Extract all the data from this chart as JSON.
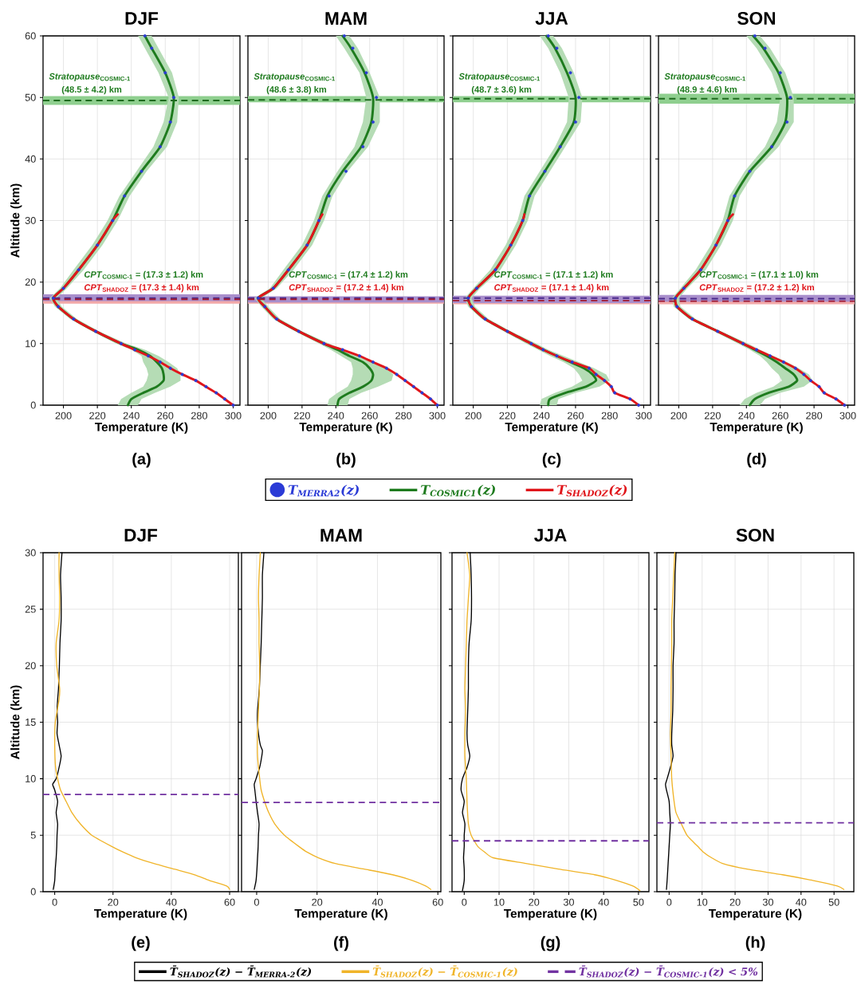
{
  "chart_data": [
    {
      "type": "line",
      "title": "DJF",
      "xlabel": "Temperature (K)",
      "ylabel": "Altitude (km)",
      "xlim": [
        188,
        304
      ],
      "ylim": [
        0,
        60
      ],
      "xticks": [
        200,
        220,
        240,
        260,
        280,
        300
      ],
      "yticks": [
        0,
        10,
        20,
        30,
        40,
        50,
        60
      ],
      "grid": true,
      "legend": "bottom",
      "series": [
        {
          "name": "T$_{MERRA2}$(z)",
          "type": "scatter",
          "marker": "circle",
          "color": "#2b3bd6",
          "x": [
            300,
            295,
            290,
            284,
            278,
            270,
            263,
            257,
            250,
            242,
            234,
            219,
            206,
            197,
            194,
            200,
            209,
            220,
            229,
            236,
            246,
            257,
            263,
            265,
            260,
            252,
            248
          ],
          "values": [
            0,
            1,
            2,
            3,
            4,
            5,
            6,
            7,
            8,
            9,
            10,
            12,
            14,
            16,
            17.4,
            19,
            22,
            26,
            30,
            34,
            38,
            42,
            46,
            50,
            54,
            58,
            60
          ]
        },
        {
          "name": "T$_{COSMIC1}$(z)",
          "type": "line",
          "color": "#1e7b1e",
          "x": [
            238,
            240,
            247,
            255,
            259,
            259,
            258,
            255,
            251,
            244,
            234,
            219,
            206,
            197,
            194,
            200,
            209,
            220,
            229,
            236,
            246,
            257,
            263,
            265,
            260,
            252,
            248
          ],
          "values": [
            0,
            1,
            2,
            3,
            4,
            5,
            6,
            7,
            8,
            9,
            10,
            12,
            14,
            16,
            17.4,
            19,
            22,
            26,
            30,
            34,
            38,
            42,
            46,
            50,
            54,
            58,
            60
          ]
        },
        {
          "name": "T$_{SHADOZ}$(z)",
          "type": "line",
          "color": "#e0161b",
          "x": [
            300,
            295,
            290,
            284,
            278,
            270,
            263,
            257,
            250,
            242,
            234,
            219,
            206,
            197,
            194,
            200,
            209,
            220,
            229,
            232
          ],
          "values": [
            0,
            1,
            2,
            3,
            4,
            5,
            6,
            7,
            8,
            9,
            10,
            12,
            14,
            16,
            17.4,
            19,
            22,
            26,
            30,
            31
          ]
        },
        {
          "type": "area",
          "color": "#b5dcb5",
          "x": [
            232,
            234,
            240,
            247,
            249,
            250,
            249,
            247,
            246,
            240,
            231,
            217,
            204,
            195,
            192,
            198,
            206,
            217,
            226,
            233,
            243,
            253,
            259,
            262,
            256,
            248,
            244,
            252,
            256,
            264,
            268,
            267,
            261,
            249,
            239,
            232,
            223,
            212,
            202,
            196,
            199,
            208,
            221,
            237,
            248,
            256,
            262,
            267,
            269,
            269,
            263,
            254,
            246,
            244
          ],
          "values": [
            0,
            1,
            2,
            3,
            4,
            5,
            6,
            7,
            8,
            9,
            10,
            12,
            14,
            16,
            17.4,
            19,
            22,
            26,
            30,
            34,
            38,
            42,
            46,
            50,
            54,
            58,
            60,
            60,
            58,
            54,
            50,
            46,
            42,
            38,
            34,
            30,
            26,
            22,
            19,
            17.4,
            16,
            14,
            12,
            10,
            9,
            8,
            7,
            6,
            5,
            4,
            3,
            2,
            1,
            0
          ]
        }
      ],
      "bands": [
        {
          "axis": "y",
          "from": 48.8,
          "to": 50.2,
          "color": "#8fcf8f"
        },
        {
          "axis": "y",
          "from": 16.5,
          "to": 17.6,
          "color": "#f2a9a9"
        },
        {
          "axis": "y",
          "from": 16.9,
          "to": 18.0,
          "color": "#a98fcc"
        }
      ],
      "ref_lines": [
        {
          "axis": "y",
          "value": 49.5,
          "color": "#1e6b1e",
          "line_style": "dashed"
        },
        {
          "axis": "y",
          "value": 17.4,
          "color": "#4b2a8a",
          "line_style": "dashed"
        },
        {
          "axis": "y",
          "value": 17.2,
          "color": "#a01830",
          "line_style": "dashed"
        }
      ],
      "annotations": [
        "*Stratopause*$_{COSMIC-1}$",
        "(48.5 ± 4.2) km",
        "*CPT*$_{COSMIC-1}$ = (17.3 ± 1.2) km",
        "*CPT*$_{SHADOZ}$ = (17.3 ± 1.4) km",
        "(a)"
      ]
    },
    {
      "type": "line",
      "title": "MAM",
      "xlabel": "Temperature (K)",
      "xlim": [
        188,
        304
      ],
      "ylim": [
        0,
        60
      ],
      "xticks": [
        200,
        220,
        240,
        260,
        280,
        300
      ],
      "yticks": [
        0,
        10,
        20,
        30,
        40,
        50,
        60
      ],
      "grid": true,
      "tick_labels": "x",
      "series": [
        {
          "type": "scatter",
          "marker": "circle",
          "color": "#2b3bd6",
          "x": [
            300,
            296,
            291,
            286,
            281,
            276,
            270,
            262,
            254,
            244,
            233,
            218,
            205,
            198,
            194,
            203,
            212,
            223,
            230,
            236,
            246,
            256,
            262,
            264,
            258,
            250,
            245
          ],
          "values": [
            0,
            1,
            2,
            3,
            4,
            5,
            6,
            7,
            8,
            9,
            10,
            12,
            14,
            16,
            17.4,
            19,
            22,
            26,
            30,
            34,
            38,
            42,
            46,
            50,
            54,
            58,
            60
          ]
        },
        {
          "type": "line",
          "color": "#1e7b1e",
          "x": [
            241,
            242,
            248,
            256,
            261,
            262,
            260,
            256,
            248,
            241,
            233,
            218,
            205,
            198,
            194,
            203,
            212,
            223,
            230,
            235,
            244,
            255,
            261,
            262,
            257,
            249,
            244
          ],
          "values": [
            0,
            1,
            2,
            3,
            4,
            5,
            6,
            7,
            8,
            9,
            10,
            12,
            14,
            16,
            17.4,
            19,
            22,
            26,
            30,
            34,
            38,
            42,
            46,
            50,
            54,
            58,
            60
          ]
        },
        {
          "type": "line",
          "color": "#e0161b",
          "x": [
            300,
            296,
            291,
            286,
            281,
            276,
            270,
            262,
            254,
            244,
            233,
            218,
            205,
            198,
            194,
            203,
            212,
            223,
            230,
            232
          ],
          "values": [
            0,
            1,
            2,
            3,
            4,
            5,
            6,
            7,
            8,
            9,
            10,
            12,
            14,
            16,
            17.4,
            19,
            22,
            26,
            30,
            31
          ]
        },
        {
          "type": "area",
          "color": "#b5dcb5",
          "x": [
            235,
            236,
            241,
            247,
            249,
            250,
            250,
            249,
            243,
            237,
            230,
            216,
            203,
            196,
            192,
            201,
            209,
            220,
            227,
            232,
            241,
            251,
            256,
            258,
            254,
            245,
            240,
            248,
            253,
            260,
            266,
            266,
            259,
            247,
            238,
            233,
            226,
            215,
            205,
            196,
            200,
            207,
            220,
            236,
            245,
            253,
            263,
            270,
            274,
            273,
            265,
            255,
            248,
            247
          ],
          "values": [
            0,
            1,
            2,
            3,
            4,
            5,
            6,
            7,
            8,
            9,
            10,
            12,
            14,
            16,
            17.4,
            19,
            22,
            26,
            30,
            34,
            38,
            42,
            46,
            50,
            54,
            58,
            60,
            60,
            58,
            54,
            50,
            46,
            42,
            38,
            34,
            30,
            26,
            22,
            19,
            17.4,
            16,
            14,
            12,
            10,
            9,
            8,
            7,
            6,
            5,
            4,
            3,
            2,
            1,
            0
          ]
        }
      ],
      "bands": [
        {
          "axis": "y",
          "from": 49.2,
          "to": 50.2,
          "color": "#8fcf8f"
        },
        {
          "axis": "y",
          "from": 16.5,
          "to": 17.5,
          "color": "#f2a9a9"
        },
        {
          "axis": "y",
          "from": 16.7,
          "to": 17.7,
          "color": "#a98fcc"
        }
      ],
      "ref_lines": [
        {
          "axis": "y",
          "value": 49.6,
          "color": "#1e6b1e",
          "line_style": "dashed"
        },
        {
          "axis": "y",
          "value": 17.4,
          "color": "#4b2a8a",
          "line_style": "dashed"
        },
        {
          "axis": "y",
          "value": 17.2,
          "color": "#a01830",
          "line_style": "dashed"
        }
      ],
      "annotations": [
        "*Stratopause*$_{COSMIC-1}$",
        "(48.6 ± 3.8) km",
        "*CPT*$_{COSMIC-1}$ = (17.4 ± 1.2) km",
        "*CPT*$_{SHADOZ}$ = (17.2 ± 1.4) km",
        "(b)"
      ]
    },
    {
      "type": "line",
      "title": "JJA",
      "xlabel": "Temperature (K)",
      "xlim": [
        188,
        304
      ],
      "ylim": [
        0,
        60
      ],
      "xticks": [
        200,
        220,
        240,
        260,
        280,
        300
      ],
      "yticks": [
        0,
        10,
        20,
        30,
        40,
        50,
        60
      ],
      "grid": true,
      "tick_labels": "x",
      "series": [
        {
          "type": "scatter",
          "marker": "circle",
          "color": "#2b3bd6",
          "x": [
            297,
            292,
            283,
            281,
            277,
            272,
            268,
            258,
            249,
            241,
            234,
            220,
            207,
            199,
            197,
            202,
            213,
            222,
            229,
            233,
            242,
            251,
            260,
            262,
            257,
            249,
            244
          ],
          "values": [
            0,
            1,
            2,
            3,
            4,
            5,
            6,
            7,
            8,
            9,
            10,
            12,
            14,
            16,
            17.4,
            19,
            22,
            26,
            30,
            34,
            38,
            42,
            46,
            50,
            54,
            58,
            60
          ]
        },
        {
          "type": "line",
          "color": "#1e7b1e",
          "x": [
            244,
            245,
            254,
            266,
            272,
            270,
            265,
            257,
            249,
            241,
            234,
            220,
            207,
            199,
            197,
            202,
            213,
            222,
            229,
            233,
            242,
            251,
            259,
            260,
            255,
            248,
            243
          ],
          "values": [
            0,
            1,
            2,
            3,
            4,
            5,
            6,
            7,
            8,
            9,
            10,
            12,
            14,
            16,
            17.4,
            19,
            22,
            26,
            30,
            34,
            38,
            42,
            46,
            50,
            54,
            58,
            60
          ]
        },
        {
          "type": "line",
          "color": "#e0161b",
          "x": [
            297,
            292,
            283,
            281,
            277,
            272,
            268,
            258,
            249,
            241,
            234,
            220,
            207,
            199,
            197,
            202,
            213,
            222,
            229,
            230
          ],
          "values": [
            0,
            1,
            2,
            3,
            4,
            5,
            6,
            7,
            8,
            9,
            10,
            12,
            14,
            16,
            17.4,
            19,
            22,
            26,
            30,
            31
          ]
        },
        {
          "type": "area",
          "color": "#b5dcb5",
          "x": [
            239,
            240,
            248,
            258,
            264,
            262,
            259,
            253,
            245,
            238,
            231,
            218,
            205,
            197,
            195,
            200,
            210,
            219,
            226,
            230,
            239,
            248,
            255,
            256,
            251,
            244,
            239,
            247,
            252,
            259,
            264,
            263,
            254,
            245,
            236,
            232,
            225,
            216,
            204,
            199,
            201,
            209,
            222,
            237,
            244,
            253,
            262,
            271,
            278,
            280,
            274,
            260,
            250,
            249
          ],
          "values": [
            0,
            1,
            2,
            3,
            4,
            5,
            6,
            7,
            8,
            9,
            10,
            12,
            14,
            16,
            17.4,
            19,
            22,
            26,
            30,
            34,
            38,
            42,
            46,
            50,
            54,
            58,
            60,
            60,
            58,
            54,
            50,
            46,
            42,
            38,
            34,
            30,
            26,
            22,
            19,
            17.4,
            16,
            14,
            12,
            10,
            9,
            8,
            7,
            6,
            5,
            4,
            3,
            2,
            1,
            0
          ]
        }
      ],
      "bands": [
        {
          "axis": "y",
          "from": 49.2,
          "to": 50.2,
          "color": "#8fcf8f"
        },
        {
          "axis": "y",
          "from": 16.4,
          "to": 17.4,
          "color": "#f2a9a9"
        },
        {
          "axis": "y",
          "from": 16.6,
          "to": 17.8,
          "color": "#a98fcc"
        }
      ],
      "ref_lines": [
        {
          "axis": "y",
          "value": 49.8,
          "color": "#1e6b1e",
          "line_style": "dashed"
        },
        {
          "axis": "y",
          "value": 17.4,
          "color": "#4b2a8a",
          "line_style": "dashed"
        },
        {
          "axis": "y",
          "value": 17.0,
          "color": "#a01830",
          "line_style": "dashed"
        }
      ],
      "annotations": [
        "*Stratopause*$_{COSMIC-1}$",
        "(48.7 ± 3.6) km",
        "*CPT*$_{COSMIC-1}$ = (17.1 ± 1.2) km",
        "*CPT*$_{SHADOZ}$ = (17.1 ± 1.4) km",
        "(c)"
      ]
    },
    {
      "type": "line",
      "title": "SON",
      "xlabel": "Temperature (K)",
      "xlim": [
        188,
        304
      ],
      "ylim": [
        0,
        60
      ],
      "xticks": [
        200,
        220,
        240,
        260,
        280,
        300
      ],
      "yticks": [
        0,
        10,
        20,
        30,
        40,
        50,
        60
      ],
      "grid": true,
      "tick_labels": "x",
      "series": [
        {
          "type": "scatter",
          "marker": "circle",
          "color": "#2b3bd6",
          "x": [
            298,
            293,
            286,
            283,
            278,
            274,
            269,
            262,
            254,
            246,
            238,
            223,
            208,
            199,
            198,
            203,
            213,
            222,
            229,
            233,
            242,
            255,
            264,
            266,
            260,
            251,
            245
          ],
          "values": [
            0,
            1,
            2,
            3,
            4,
            5,
            6,
            7,
            8,
            9,
            10,
            12,
            14,
            16,
            17.4,
            19,
            22,
            26,
            30,
            34,
            38,
            42,
            46,
            50,
            54,
            58,
            60
          ]
        },
        {
          "type": "line",
          "color": "#1e7b1e",
          "x": [
            242,
            245,
            253,
            265,
            270,
            268,
            263,
            258,
            252,
            245,
            238,
            223,
            208,
            199,
            198,
            203,
            213,
            222,
            229,
            233,
            242,
            255,
            263,
            264,
            259,
            250,
            244
          ],
          "values": [
            0,
            1,
            2,
            3,
            4,
            5,
            6,
            7,
            8,
            9,
            10,
            12,
            14,
            16,
            17.4,
            19,
            22,
            26,
            30,
            34,
            38,
            42,
            46,
            50,
            54,
            58,
            60
          ]
        },
        {
          "type": "line",
          "color": "#e0161b",
          "x": [
            298,
            293,
            286,
            283,
            278,
            274,
            269,
            262,
            254,
            246,
            238,
            223,
            208,
            199,
            198,
            203,
            213,
            222,
            229,
            232
          ],
          "values": [
            0,
            1,
            2,
            3,
            4,
            5,
            6,
            7,
            8,
            9,
            10,
            12,
            14,
            16,
            17.4,
            19,
            22,
            26,
            30,
            31
          ]
        },
        {
          "type": "area",
          "color": "#b5dcb5",
          "x": [
            236,
            239,
            246,
            256,
            261,
            259,
            255,
            252,
            248,
            242,
            235,
            221,
            206,
            197,
            196,
            201,
            210,
            219,
            226,
            230,
            239,
            251,
            258,
            260,
            255,
            246,
            240,
            248,
            254,
            263,
            268,
            268,
            259,
            245,
            236,
            232,
            225,
            216,
            205,
            200,
            201,
            210,
            225,
            241,
            248,
            256,
            264,
            271,
            277,
            279,
            274,
            260,
            251,
            248
          ],
          "values": [
            0,
            1,
            2,
            3,
            4,
            5,
            6,
            7,
            8,
            9,
            10,
            12,
            14,
            16,
            17.4,
            19,
            22,
            26,
            30,
            34,
            38,
            42,
            46,
            50,
            54,
            58,
            60,
            60,
            58,
            54,
            50,
            46,
            42,
            38,
            34,
            30,
            26,
            22,
            19,
            17.4,
            16,
            14,
            12,
            10,
            9,
            8,
            7,
            6,
            5,
            4,
            3,
            2,
            1,
            0
          ]
        }
      ],
      "bands": [
        {
          "axis": "y",
          "from": 49.0,
          "to": 50.6,
          "color": "#8fcf8f"
        },
        {
          "axis": "y",
          "from": 16.4,
          "to": 17.4,
          "color": "#f2a9a9"
        },
        {
          "axis": "y",
          "from": 16.8,
          "to": 17.9,
          "color": "#a98fcc"
        }
      ],
      "ref_lines": [
        {
          "axis": "y",
          "value": 49.8,
          "color": "#1e6b1e",
          "line_style": "dashed"
        },
        {
          "axis": "y",
          "value": 17.3,
          "color": "#4b2a8a",
          "line_style": "dashed"
        },
        {
          "axis": "y",
          "value": 16.9,
          "color": "#a01830",
          "line_style": "dashed"
        }
      ],
      "annotations": [
        "*Stratopause*$_{COSMIC-1}$",
        "(48.9 ± 4.6) km",
        "*CPT*$_{COSMIC-1}$ = (17.1 ± 1.0) km",
        "*CPT*$_{SHADOZ}$ = (17.2 ± 1.2) km",
        "(d)"
      ]
    },
    {
      "type": "line",
      "title": "DJF",
      "xlabel": "Temperature (K)",
      "ylabel": "Altitude (km)",
      "xlim": [
        -4,
        63
      ],
      "ylim": [
        0,
        30
      ],
      "xticks": [
        0,
        20,
        40,
        60
      ],
      "yticks": [
        0,
        5,
        10,
        15,
        20,
        25,
        30
      ],
      "grid": true,
      "legend": "bottom",
      "series": [
        {
          "name": "T̄$_{SHADOZ}$(z) − T̄$_{MERRA-2}$(z)",
          "color": "#000000",
          "x": [
            -0.5,
            0,
            0.2,
            0.5,
            0.7,
            0.8,
            1,
            0.5,
            1,
            0,
            -0.7,
            0.5,
            1.5,
            2.2,
            1.5,
            0.8,
            1,
            0.8,
            1,
            1.3,
            1.6,
            1.8,
            2.2,
            2.2,
            2,
            2.5
          ],
          "values": [
            0.2,
            1,
            2,
            3,
            4,
            5,
            6,
            7,
            8,
            9,
            9.5,
            10,
            11,
            12,
            13,
            14,
            15,
            16,
            17,
            18,
            20,
            22,
            24,
            26,
            28,
            30
          ]
        },
        {
          "name": "T̄$_{SHADOZ}$(z) − T̄$_{COSMIC-1}$(z)",
          "color": "#f0b429",
          "x": [
            60,
            59,
            53,
            48,
            41,
            34,
            28,
            23.5,
            19.6,
            12.7,
            8.8,
            5.9,
            3.9,
            2,
            1,
            0.3,
            0,
            0.2,
            1.5,
            1.7,
            0.7,
            0.5,
            1.5,
            1.7,
            1.5,
            1.5
          ],
          "values": [
            0.2,
            0.5,
            1,
            1.5,
            2,
            2.5,
            3,
            3.5,
            4,
            5,
            6,
            7,
            8,
            9,
            10,
            11,
            13,
            15,
            17,
            18,
            20,
            22,
            24,
            26,
            28,
            30
          ]
        }
      ],
      "ref_lines": [
        {
          "axis": "y",
          "value": 8.6,
          "label": "T̄$_{SHADOZ}$(z) − T̄$_{COSMIC-1}$(z) < 5%",
          "color": "#7030a0",
          "line_style": "dashed"
        }
      ],
      "annotations": [
        "(e)"
      ]
    },
    {
      "type": "line",
      "title": "MAM",
      "xlabel": "Temperature (K)",
      "xlim": [
        -5,
        61
      ],
      "ylim": [
        0,
        30
      ],
      "xticks": [
        0,
        20,
        40,
        60
      ],
      "yticks": [
        0,
        5,
        10,
        15,
        20,
        25,
        30
      ],
      "grid": true,
      "tick_labels": "x",
      "series": [
        {
          "color": "#000000",
          "x": [
            -0.8,
            -0.2,
            0.1,
            0.3,
            0.5,
            0.6,
            0.8,
            0.3,
            -0.2,
            -0.6,
            -0.8,
            -0.2,
            1,
            1.7,
            1.9,
            1.2,
            0.6,
            0.3,
            0.3,
            0.6,
            0.9,
            1.2,
            1.5,
            1.7,
            1.9,
            1.9,
            2.4
          ],
          "values": [
            0.2,
            1,
            2,
            3,
            4,
            5,
            6,
            7,
            8,
            9,
            9.5,
            10,
            11,
            12,
            12.5,
            13,
            14,
            15,
            16,
            17,
            18,
            20,
            22,
            24,
            26,
            28,
            30
          ]
        },
        {
          "color": "#f0b429",
          "x": [
            57.7,
            56,
            51.5,
            45,
            35.6,
            26,
            20.5,
            16.7,
            14,
            9.2,
            6,
            4,
            2.6,
            1.5,
            1,
            0.3,
            0.3,
            0.6,
            0.9,
            1,
            0.8,
            0.8,
            0.6,
            0.8,
            1.2
          ],
          "values": [
            0.2,
            0.5,
            1,
            1.5,
            2,
            2.5,
            3,
            3.5,
            4,
            5,
            6,
            7,
            8,
            9,
            10,
            12,
            14,
            16,
            18,
            20,
            22,
            24,
            26,
            28,
            30
          ]
        }
      ],
      "ref_lines": [
        {
          "axis": "y",
          "value": 7.9,
          "color": "#7030a0",
          "line_style": "dashed"
        }
      ],
      "annotations": [
        "(f)"
      ]
    },
    {
      "type": "line",
      "title": "JJA",
      "xlabel": "Temperature (K)",
      "xlim": [
        -3.5,
        53
      ],
      "ylim": [
        0,
        30
      ],
      "xticks": [
        0,
        10,
        20,
        30,
        40,
        50
      ],
      "yticks": [
        0,
        5,
        10,
        15,
        20,
        25,
        30
      ],
      "grid": true,
      "tick_labels": "x",
      "series": [
        {
          "color": "#000000",
          "x": [
            -0.5,
            0,
            0,
            -0.2,
            0,
            0,
            0.2,
            -0.5,
            0,
            -0.9,
            -0.5,
            0.8,
            1.6,
            1,
            0.8,
            1,
            1.2,
            1.2,
            1.4,
            2,
            2.1,
            2,
            1.7
          ],
          "values": [
            0.1,
            1,
            2,
            3,
            4,
            5,
            6,
            7,
            8,
            9,
            10,
            11,
            12,
            13,
            14,
            16,
            18,
            20,
            22,
            24,
            26,
            28,
            30
          ]
        },
        {
          "color": "#f0b429",
          "x": [
            50.4,
            48.4,
            43.7,
            37.4,
            27,
            17.7,
            8.3,
            5.9,
            3.9,
            2,
            1.2,
            0.8,
            0.6,
            0.2,
            0.2,
            0.4,
            0.2,
            0.4,
            0.6,
            0.8,
            1.2,
            1.6,
            0.8
          ],
          "values": [
            0.1,
            0.5,
            1,
            1.5,
            2,
            2.5,
            3,
            3.5,
            4,
            5,
            6,
            8,
            10,
            12,
            14,
            16,
            18,
            20,
            22,
            24,
            26,
            28,
            30
          ]
        }
      ],
      "ref_lines": [
        {
          "axis": "y",
          "value": 4.5,
          "color": "#7030a0",
          "line_style": "dashed"
        }
      ],
      "annotations": [
        "(g)"
      ]
    },
    {
      "type": "line",
      "title": "SON",
      "xlabel": "Temperature (K)",
      "xlim": [
        -3.7,
        56
      ],
      "ylim": [
        0,
        30
      ],
      "xticks": [
        0,
        10,
        20,
        30,
        40,
        50
      ],
      "yticks": [
        0,
        5,
        10,
        15,
        20,
        25,
        30
      ],
      "grid": true,
      "tick_labels": "x",
      "series": [
        {
          "color": "#000000",
          "x": [
            -0.8,
            -0.6,
            -0.4,
            -0.2,
            0,
            0.2,
            0.4,
            0.2,
            0,
            -0.8,
            -1.1,
            -0.6,
            0.4,
            1.2,
            0.8,
            0.8,
            1.1,
            1.2,
            1.2,
            1.5,
            1.5,
            1.7,
            1.8,
            2.1
          ],
          "values": [
            0.2,
            1,
            2,
            3,
            4,
            5,
            6,
            7,
            8,
            9,
            9.5,
            10,
            11,
            12,
            13,
            14,
            16,
            18,
            20,
            22,
            24,
            26,
            28,
            30
          ]
        },
        {
          "color": "#f0b429",
          "x": [
            53,
            51,
            43.5,
            34.4,
            23.6,
            16.2,
            12.9,
            10.4,
            8.7,
            7,
            5.4,
            3.7,
            2.1,
            1.5,
            0.8,
            0.6,
            0.4,
            0.6,
            0.6,
            0.7,
            0.8,
            0.8,
            1.1,
            1.4,
            1.7
          ],
          "values": [
            0.2,
            0.5,
            1,
            1.5,
            2,
            2.5,
            3,
            3.5,
            4,
            4.5,
            5,
            6,
            7,
            8,
            10,
            12,
            14,
            16,
            18,
            20,
            22,
            24,
            26,
            28,
            30
          ]
        }
      ],
      "ref_lines": [
        {
          "axis": "y",
          "value": 6.1,
          "color": "#7030a0",
          "line_style": "dashed"
        }
      ],
      "annotations": [
        "(h)"
      ]
    }
  ]
}
